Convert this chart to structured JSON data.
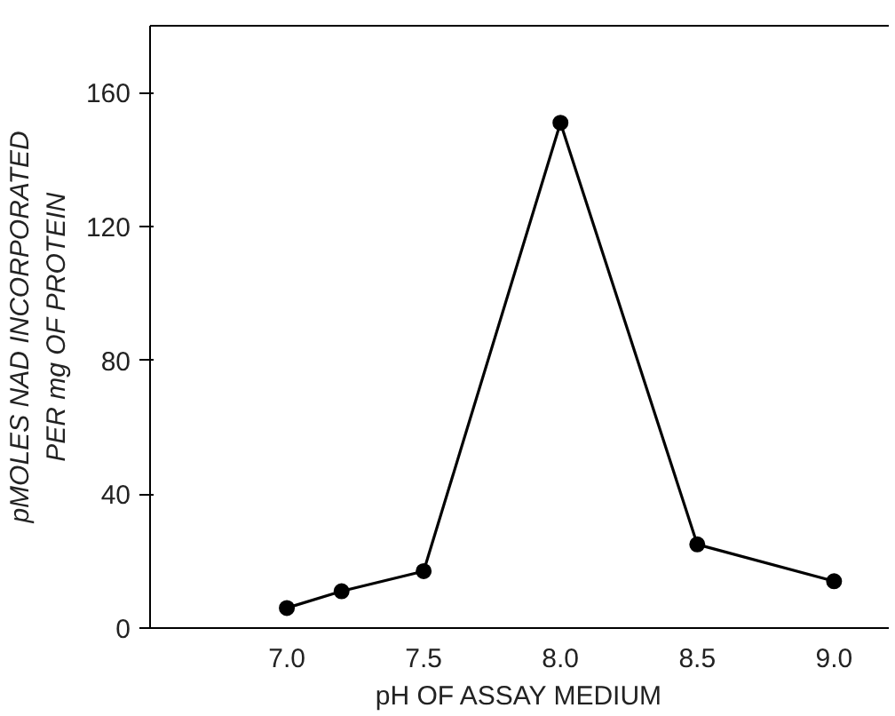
{
  "chart_data": {
    "type": "line",
    "xlabel": "pH OF ASSAY MEDIUM",
    "ylabel": "pMOLES NAD INCORPORATED\nPER mg OF PROTEIN",
    "x": [
      7.0,
      7.2,
      7.5,
      8.0,
      8.5,
      9.0
    ],
    "series": [
      {
        "color": "#000000",
        "values": [
          6,
          11,
          17,
          151,
          25,
          14
        ]
      }
    ],
    "xlim": [
      6.5,
      9.2
    ],
    "ylim": [
      0,
      180
    ],
    "xticks": [
      {
        "value": 7.0,
        "label": "7.0"
      },
      7.5,
      {
        "value": 8.0,
        "label": "8.0"
      },
      8.5,
      {
        "value": 9.0,
        "label": "9.0"
      }
    ],
    "yticks": [
      0,
      40,
      80,
      120,
      160
    ],
    "marker": "circle",
    "line_style": "solid",
    "grid": false
  }
}
